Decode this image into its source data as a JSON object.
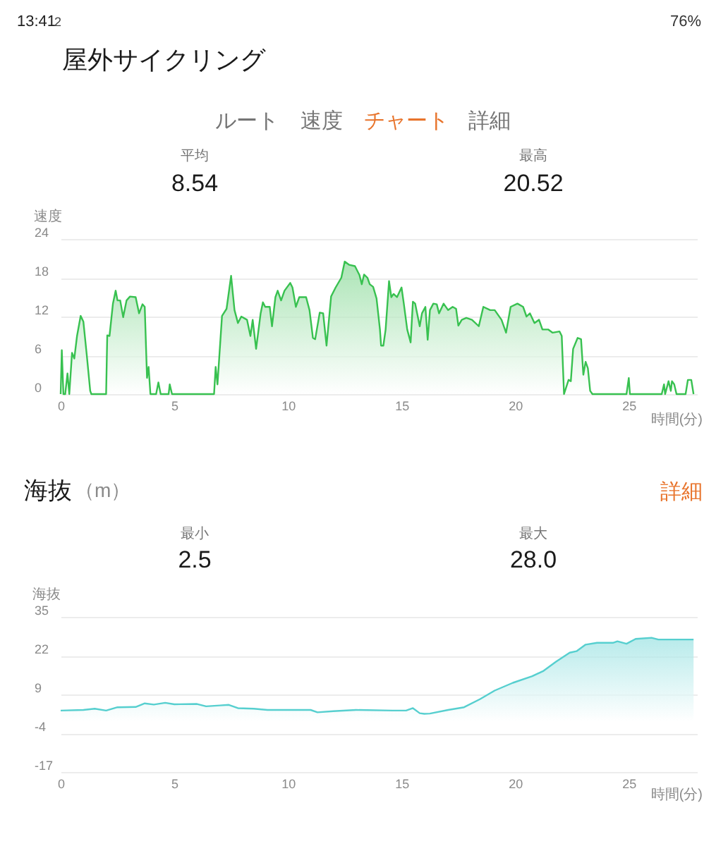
{
  "chart_data": [
    {
      "type": "other",
      "title": "屋外サイクリング",
      "annotations": [
        "13:41",
        "2",
        "76%",
        "ルート",
        "速度",
        "チャート",
        "詳細"
      ]
    },
    {
      "type": "area",
      "ylabel": "速度",
      "xlabel": "時間(分)",
      "annotations": [
        "平均",
        "8.54",
        "最高",
        "20.52"
      ],
      "x": [
        0,
        0.05,
        0.12,
        0.2,
        0.3,
        0.38,
        0.5,
        0.6,
        0.72,
        0.88,
        1.0,
        1.15,
        1.3,
        1.35,
        2.0,
        2.05,
        2.15,
        2.3,
        2.42,
        2.5,
        2.62,
        2.75,
        2.9,
        3.05,
        3.3,
        3.45,
        3.6,
        3.7,
        3.8,
        3.87,
        3.95,
        4.2,
        4.3,
        4.4,
        4.75,
        4.8,
        4.9,
        6.75,
        6.82,
        6.9,
        7.1,
        7.3,
        7.5,
        7.65,
        7.8,
        7.95,
        8.2,
        8.35,
        8.45,
        8.6,
        8.8,
        8.9,
        9.0,
        9.2,
        9.3,
        9.45,
        9.55,
        9.7,
        9.85,
        10.1,
        10.2,
        10.35,
        10.5,
        10.8,
        10.95,
        11.1,
        11.2,
        11.4,
        11.55,
        11.7,
        11.9,
        12.1,
        12.35,
        12.5,
        12.7,
        12.95,
        13.15,
        13.25,
        13.35,
        13.5,
        13.6,
        13.75,
        13.9,
        14.05,
        14.1,
        14.2,
        14.3,
        14.45,
        14.55,
        14.65,
        14.8,
        15.0,
        15.1,
        15.25,
        15.4,
        15.5,
        15.6,
        15.8,
        15.9,
        16.05,
        16.15,
        16.25,
        16.4,
        16.55,
        16.65,
        16.85,
        17.05,
        17.25,
        17.4,
        17.5,
        17.65,
        17.85,
        18.1,
        18.4,
        18.6,
        18.9,
        19.1,
        19.4,
        19.6,
        19.8,
        20.1,
        20.35,
        20.5,
        20.65,
        20.85,
        21.05,
        21.2,
        21.45,
        21.65,
        21.95,
        22.05,
        22.15,
        22.35,
        22.45,
        22.55,
        22.75,
        22.9,
        23.0,
        23.1,
        23.2,
        23.3,
        23.4,
        24.9,
        25.0,
        25.05,
        26.45,
        26.55,
        26.6,
        26.75,
        26.85,
        26.9,
        27.0,
        27.1,
        27.5,
        27.6,
        27.75,
        27.85
      ],
      "series": [
        {
          "color": "#38c150",
          "values": [
            0,
            6.8,
            0,
            0,
            3.2,
            0,
            6.4,
            5.5,
            9,
            12.1,
            11.2,
            6,
            0.5,
            0,
            0,
            9.1,
            9,
            14,
            16,
            14.5,
            14.5,
            11.9,
            14.5,
            15.1,
            15,
            12.5,
            13.9,
            13.5,
            2.5,
            4.2,
            0,
            0,
            1.8,
            0,
            0,
            1.5,
            0,
            0,
            4.2,
            1.5,
            12.1,
            13.2,
            18.3,
            13,
            11,
            12,
            11.5,
            9,
            11.5,
            7,
            12.5,
            14.2,
            13.5,
            13.5,
            10.5,
            15,
            16,
            14.5,
            16,
            17.2,
            16.5,
            13.5,
            15,
            15,
            13,
            8.7,
            8.5,
            12.6,
            12.5,
            7.5,
            15.1,
            16.5,
            18,
            20.5,
            20,
            19.8,
            18.4,
            17,
            18.5,
            18,
            17,
            16.6,
            14.8,
            10,
            7.5,
            7.5,
            10,
            17.5,
            15,
            15.5,
            15,
            16.5,
            14,
            10,
            8,
            14.3,
            14,
            10.5,
            12.5,
            13.5,
            8.4,
            13,
            14,
            13.9,
            12.5,
            14,
            13,
            13.5,
            13.2,
            10.6,
            11.5,
            11.8,
            11.5,
            10.5,
            13.5,
            13,
            13,
            11.5,
            9.5,
            13.5,
            14,
            13.5,
            12,
            12.5,
            11,
            11.5,
            10,
            10,
            9.5,
            9.7,
            9,
            0,
            2.2,
            2,
            7,
            8.7,
            8.5,
            3,
            5,
            4,
            0.5,
            0,
            0,
            2.5,
            0,
            0,
            1.5,
            0,
            2,
            0.5,
            2,
            1.5,
            0,
            0,
            2.2,
            2.2,
            0
          ]
        }
      ],
      "xlim": [
        0,
        28
      ],
      "ylim": [
        0,
        24
      ],
      "xticks": [
        0,
        5,
        10,
        15,
        20,
        25
      ],
      "yticks": [
        0,
        6,
        12,
        18,
        24
      ],
      "grid": "y"
    },
    {
      "type": "area",
      "title": "海抜",
      "subtitle": "（m）",
      "ylabel": "海抜",
      "xlabel": "時間(分)",
      "annotations": [
        "詳細",
        "最小",
        "2.5",
        "最大",
        "28.0"
      ],
      "x": [
        0,
        1.0,
        1.5,
        2.0,
        2.5,
        3.3,
        3.7,
        4.1,
        4.6,
        5.0,
        6.0,
        6.4,
        7.0,
        7.4,
        7.8,
        8.5,
        9.1,
        10.5,
        11.0,
        11.3,
        12.0,
        13.0,
        14.6,
        15.2,
        15.5,
        15.8,
        16.0,
        16.25,
        17.05,
        17.75,
        18.45,
        19.1,
        19.9,
        20.75,
        21.25,
        21.8,
        22.4,
        22.7,
        23.1,
        23.6,
        24.3,
        24.5,
        24.9,
        25.3,
        26.0,
        26.3,
        27.85
      ],
      "series": [
        {
          "color": "#56cfcf",
          "values": [
            3.6,
            3.8,
            4.2,
            3.6,
            4.7,
            4.8,
            6.0,
            5.6,
            6.2,
            5.7,
            5.8,
            5.0,
            5.3,
            5.5,
            4.4,
            4.2,
            3.8,
            3.8,
            3.8,
            3.0,
            3.4,
            3.8,
            3.6,
            3.6,
            4.4,
            2.7,
            2.5,
            2.6,
            3.8,
            4.7,
            7.4,
            10.3,
            12.9,
            15.1,
            16.9,
            20.0,
            23.0,
            23.5,
            25.7,
            26.3,
            26.3,
            26.8,
            26.0,
            27.6,
            28.0,
            27.4,
            27.4
          ]
        }
      ],
      "xlim": [
        0,
        28
      ],
      "ylim": [
        -17,
        35
      ],
      "xticks": [
        0,
        5,
        10,
        15,
        20,
        25
      ],
      "yticks": [
        -17,
        -4,
        9,
        22,
        35
      ],
      "grid": "y"
    }
  ]
}
